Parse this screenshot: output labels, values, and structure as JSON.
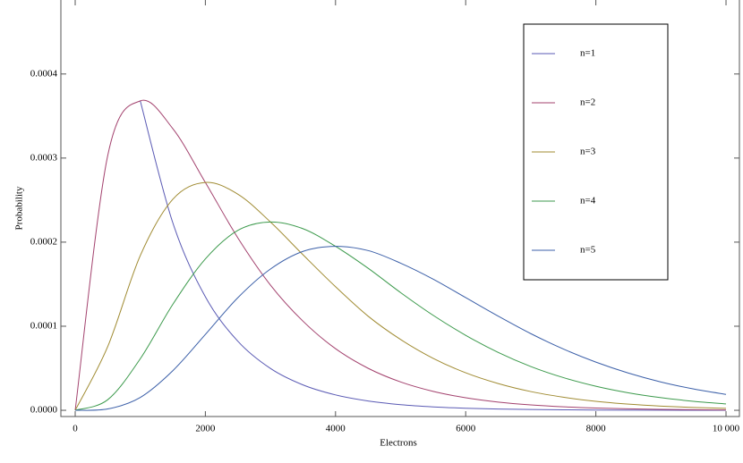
{
  "chart_data": {
    "type": "line",
    "x_label": "Electrons",
    "y_label": "Probability",
    "x": [
      0,
      500,
      1000,
      1500,
      2000,
      2500,
      3000,
      3500,
      4000,
      4500,
      5000,
      5500,
      6000,
      6500,
      7000,
      7500,
      8000,
      8500,
      9000,
      9500,
      10000
    ],
    "series": [
      {
        "name": "n=1",
        "color": "#5a5ab4",
        "values": [
          null,
          null,
          0.000368,
          0.000223,
          0.000135,
          8.21e-05,
          4.98e-05,
          3.02e-05,
          1.83e-05,
          1.11e-05,
          6.74e-06,
          4.09e-06,
          2.48e-06,
          1.5e-06,
          9.1e-07,
          5.5e-07,
          3.4e-07,
          2e-07,
          1.2e-07,
          7.5e-08,
          4.5e-08
        ]
      },
      {
        "name": "n=2",
        "color": "#a3426e",
        "values": [
          0,
          0.000303,
          0.000368,
          0.000335,
          0.000271,
          0.000205,
          0.000149,
          0.000106,
          7.33e-05,
          5e-05,
          3.37e-05,
          2.25e-05,
          1.49e-05,
          9.77e-06,
          6.38e-06,
          4.15e-06,
          2.68e-06,
          1.73e-06,
          1.11e-06,
          7.1e-07,
          4.54e-07
        ]
      },
      {
        "name": "n=3",
        "color": "#a08b32",
        "values": [
          0,
          7.58e-05,
          0.000184,
          0.000251,
          0.000271,
          0.000257,
          0.000224,
          0.000185,
          0.000147,
          0.000112,
          8.42e-05,
          6.18e-05,
          4.46e-05,
          3.18e-05,
          2.23e-05,
          1.56e-05,
          1.07e-05,
          7.35e-06,
          5e-06,
          3.38e-06,
          2.27e-06
        ]
      },
      {
        "name": "n=4",
        "color": "#3c9a4c",
        "values": [
          0,
          1.26e-05,
          6.13e-05,
          0.000126,
          0.00018,
          0.000214,
          0.000224,
          0.000216,
          0.000195,
          0.000169,
          0.00014,
          0.000113,
          8.92e-05,
          6.88e-05,
          5.21e-05,
          3.89e-05,
          2.86e-05,
          2.08e-05,
          1.5e-05,
          1.07e-05,
          7.57e-06
        ]
      },
      {
        "name": "n=5",
        "color": "#3b5fa8",
        "values": [
          0,
          1.58e-06,
          1.53e-05,
          4.71e-05,
          9.02e-05,
          0.000134,
          0.000168,
          0.000189,
          0.000195,
          0.00019,
          0.000175,
          0.000156,
          0.000134,
          0.000112,
          9.12e-05,
          7.29e-05,
          5.73e-05,
          4.43e-05,
          3.37e-05,
          2.54e-05,
          1.89e-05
        ]
      }
    ],
    "xlim": [
      -220,
      10206
    ],
    "ylim": [
      -7.4e-06,
      0.000488
    ],
    "xticks": [
      0,
      2000,
      4000,
      6000,
      8000,
      {
        "value": 10000,
        "label": "10 000"
      }
    ],
    "yticks": [
      {
        "value": 0,
        "label": "0.0000"
      },
      0.0001,
      0.0002,
      0.0003,
      0.0004
    ],
    "legend": "top-right"
  }
}
